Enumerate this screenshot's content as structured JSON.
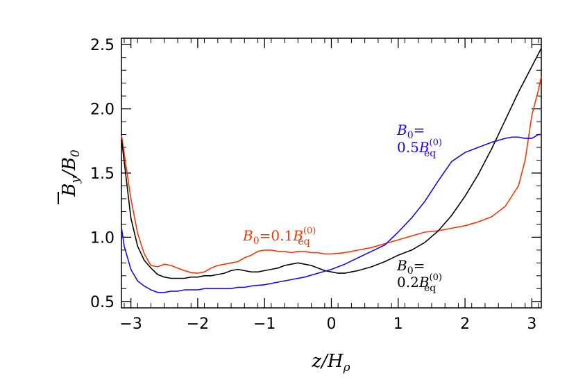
{
  "chart_data": {
    "type": "line",
    "title": "",
    "xlabel": {
      "main": "z/H",
      "sub": "ρ"
    },
    "ylabel": {
      "num_main": "B",
      "num_sub": "y",
      "den_main": "B",
      "den_sub": "0"
    },
    "xlim": [
      -3.14159,
      3.14159
    ],
    "ylim": [
      0.45,
      2.55
    ],
    "xticks": [
      -3,
      -2,
      -1,
      0,
      1,
      2,
      3
    ],
    "xtick_labels": [
      "−3",
      "−2",
      "−1",
      "0",
      "1",
      "2",
      "3"
    ],
    "yticks": [
      0.5,
      1.0,
      1.5,
      2.0,
      2.5
    ],
    "ytick_labels": [
      "0.5",
      "1.0",
      "1.5",
      "2.0",
      "2.5"
    ],
    "grid": false,
    "series": [
      {
        "name": "B0=0.1Beq(0)",
        "color": "#ff3300",
        "x": [
          -3.14,
          -3.0,
          -2.9,
          -2.8,
          -2.7,
          -2.6,
          -2.5,
          -2.4,
          -2.3,
          -2.2,
          -2.1,
          -2.0,
          -1.9,
          -1.8,
          -1.7,
          -1.6,
          -1.5,
          -1.4,
          -1.3,
          -1.2,
          -1.1,
          -1.0,
          -0.9,
          -0.8,
          -0.7,
          -0.6,
          -0.5,
          -0.4,
          -0.3,
          -0.2,
          -0.1,
          0.0,
          0.2,
          0.4,
          0.6,
          0.8,
          1.0,
          1.2,
          1.4,
          1.6,
          1.8,
          2.0,
          2.2,
          2.4,
          2.6,
          2.8,
          2.9,
          3.0,
          3.1,
          3.14
        ],
        "y": [
          1.79,
          1.3,
          1.03,
          0.87,
          0.78,
          0.77,
          0.79,
          0.78,
          0.76,
          0.74,
          0.725,
          0.72,
          0.73,
          0.76,
          0.78,
          0.79,
          0.8,
          0.81,
          0.84,
          0.86,
          0.89,
          0.9,
          0.9,
          0.89,
          0.89,
          0.88,
          0.89,
          0.89,
          0.88,
          0.88,
          0.87,
          0.87,
          0.88,
          0.9,
          0.92,
          0.95,
          0.98,
          1.01,
          1.04,
          1.05,
          1.07,
          1.09,
          1.12,
          1.16,
          1.24,
          1.4,
          1.6,
          1.95,
          2.15,
          2.25
        ]
      },
      {
        "name": "B0=0.2Beq(0)",
        "color": "#000000",
        "x": [
          -3.14,
          -3.0,
          -2.9,
          -2.8,
          -2.7,
          -2.6,
          -2.5,
          -2.4,
          -2.3,
          -2.2,
          -2.1,
          -2.0,
          -1.9,
          -1.8,
          -1.7,
          -1.6,
          -1.5,
          -1.4,
          -1.3,
          -1.2,
          -1.1,
          -1.0,
          -0.9,
          -0.8,
          -0.7,
          -0.6,
          -0.5,
          -0.4,
          -0.3,
          -0.2,
          -0.1,
          0.0,
          0.1,
          0.2,
          0.4,
          0.6,
          0.8,
          1.0,
          1.2,
          1.4,
          1.6,
          1.8,
          2.0,
          2.2,
          2.4,
          2.6,
          2.8,
          3.0,
          3.14
        ],
        "y": [
          1.76,
          1.15,
          0.93,
          0.82,
          0.76,
          0.71,
          0.69,
          0.68,
          0.68,
          0.68,
          0.69,
          0.69,
          0.7,
          0.7,
          0.71,
          0.72,
          0.74,
          0.75,
          0.74,
          0.73,
          0.73,
          0.74,
          0.75,
          0.76,
          0.78,
          0.79,
          0.8,
          0.79,
          0.78,
          0.76,
          0.74,
          0.73,
          0.72,
          0.72,
          0.74,
          0.77,
          0.81,
          0.86,
          0.9,
          0.96,
          1.05,
          1.17,
          1.32,
          1.49,
          1.69,
          1.91,
          2.13,
          2.33,
          2.47
        ]
      },
      {
        "name": "B0=0.5Beq(0)",
        "color": "#2200ff",
        "x": [
          -3.14,
          -3.1,
          -3.0,
          -2.9,
          -2.8,
          -2.7,
          -2.6,
          -2.5,
          -2.4,
          -2.3,
          -2.2,
          -2.1,
          -2.0,
          -1.9,
          -1.8,
          -1.7,
          -1.6,
          -1.5,
          -1.4,
          -1.3,
          -1.2,
          -1.0,
          -0.8,
          -0.6,
          -0.4,
          -0.2,
          0.0,
          0.2,
          0.4,
          0.6,
          0.8,
          1.0,
          1.2,
          1.4,
          1.6,
          1.8,
          2.0,
          2.2,
          2.4,
          2.6,
          2.7,
          2.8,
          2.9,
          3.0,
          3.1,
          3.14
        ],
        "y": [
          1.07,
          0.93,
          0.75,
          0.66,
          0.62,
          0.59,
          0.57,
          0.57,
          0.58,
          0.58,
          0.59,
          0.59,
          0.59,
          0.6,
          0.6,
          0.6,
          0.6,
          0.6,
          0.61,
          0.61,
          0.62,
          0.63,
          0.65,
          0.67,
          0.69,
          0.72,
          0.75,
          0.79,
          0.84,
          0.89,
          0.94,
          1.04,
          1.15,
          1.28,
          1.44,
          1.59,
          1.66,
          1.7,
          1.74,
          1.77,
          1.78,
          1.78,
          1.77,
          1.77,
          1.8,
          1.8
        ]
      }
    ],
    "annotations": [
      {
        "key": "a1",
        "color": "#ff3300",
        "main": "B",
        "sub1": "0",
        "middle": "=0.1",
        "main2": "B",
        "sup": "(0)",
        "sub2": "eq"
      },
      {
        "key": "a2",
        "color": "#000000",
        "line1_main": "B",
        "line1_sub": "0",
        "line1_eq": "=",
        "line2_coef": "0.2",
        "main2": "B",
        "sup": "(0)",
        "sub2": "eq"
      },
      {
        "key": "a3",
        "color": "#2200ff",
        "line1_main": "B",
        "line1_sub": "0",
        "line1_eq": "=",
        "line2_coef": "0.5",
        "main2": "B",
        "sup": "(0)",
        "sub2": "eq"
      }
    ]
  }
}
